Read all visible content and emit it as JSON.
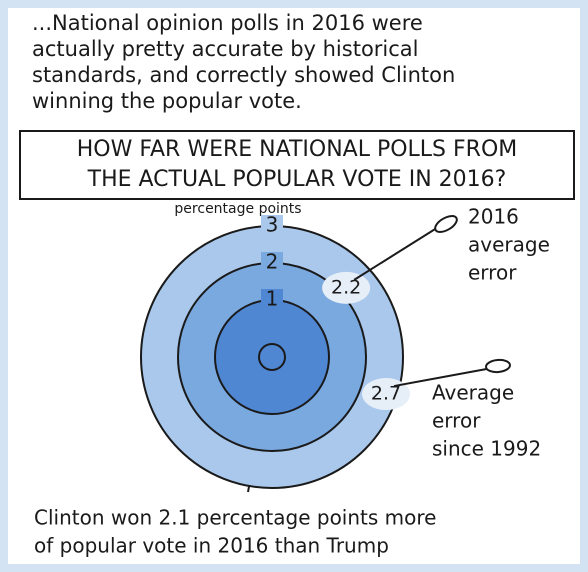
{
  "intro": [
    "...National opinion polls in 2016 were",
    "actually pretty accurate by historical",
    "standards, and correctly showed Clinton",
    "winning the popular vote."
  ],
  "question": [
    "HOW FAR WERE NATIONAL POLLS FROM",
    "THE ACTUAL POPULAR VOTE IN 2016?"
  ],
  "unit_label": "percentage points",
  "rings": [
    3,
    2,
    1
  ],
  "markers": [
    {
      "value": 2.2,
      "label": [
        "2016",
        "average",
        "error"
      ]
    },
    {
      "value": 2.7,
      "label": [
        "Average",
        "error",
        "since 1992"
      ]
    }
  ],
  "footer": [
    "Clinton won 2.1 percentage points more",
    "of popular vote in 2016 than Trump"
  ]
}
